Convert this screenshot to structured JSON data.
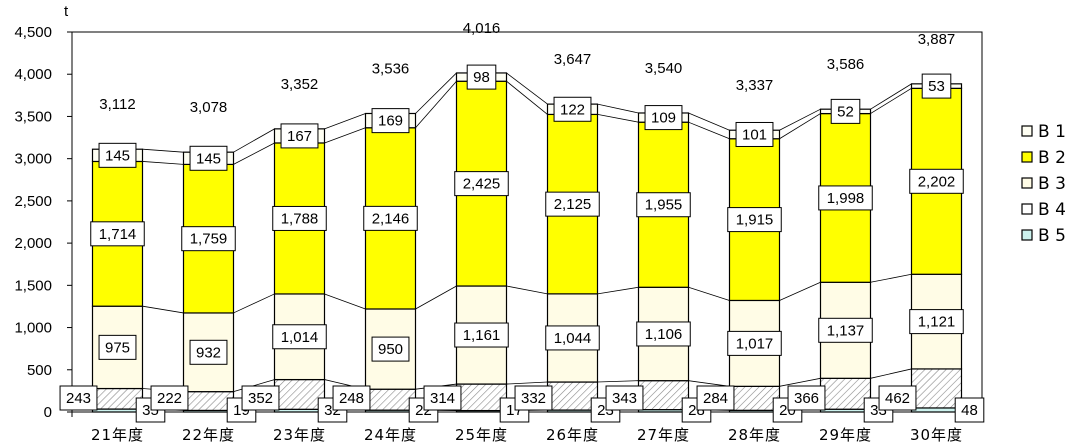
{
  "colors": {
    "B 1": "#fffff3",
    "B 2": "#ffff00",
    "B 3": "#fffce6",
    "B 4": "#ffffff",
    "B 5": "#ccf2ee"
  },
  "chart_data": {
    "type": "bar",
    "stacked": true,
    "unit_label": "t",
    "categories": [
      "21年度",
      "22年度",
      "23年度",
      "24年度",
      "25年度",
      "26年度",
      "27年度",
      "28年度",
      "29年度",
      "30年度"
    ],
    "ylim": [
      0,
      4500
    ],
    "yticks": [
      0,
      500,
      1000,
      1500,
      2000,
      2500,
      3000,
      3500,
      4000,
      4500
    ],
    "ytick_labels": [
      "0",
      "500",
      "1,000",
      "1,500",
      "2,000",
      "2,500",
      "3,000",
      "3,500",
      "4,000",
      "4,500"
    ],
    "grid": false,
    "legend_position": "right",
    "series": [
      {
        "name": "B 5",
        "values": [
          35,
          19,
          32,
          22,
          17,
          23,
          28,
          20,
          33,
          48
        ],
        "labels": [
          "35",
          "19",
          "32",
          "22",
          "17",
          "23",
          "28",
          "20",
          "33",
          "48"
        ]
      },
      {
        "name": "B 4",
        "values": [
          243,
          222,
          352,
          248,
          314,
          332,
          343,
          284,
          366,
          462
        ],
        "labels": [
          "243",
          "222",
          "352",
          "248",
          "314",
          "332",
          "343",
          "284",
          "366",
          "462"
        ]
      },
      {
        "name": "B 3",
        "values": [
          975,
          932,
          1014,
          950,
          1161,
          1044,
          1106,
          1017,
          1137,
          1121
        ],
        "labels": [
          "975",
          "932",
          "1,014",
          "950",
          "1,161",
          "1,044",
          "1,106",
          "1,017",
          "1,137",
          "1,121"
        ]
      },
      {
        "name": "B 2",
        "values": [
          1714,
          1759,
          1788,
          2146,
          2425,
          2125,
          1955,
          1915,
          1998,
          2202
        ],
        "labels": [
          "1,714",
          "1,759",
          "1,788",
          "2,146",
          "2,425",
          "2,125",
          "1,955",
          "1,915",
          "1,998",
          "2,202"
        ]
      },
      {
        "name": "B 1",
        "values": [
          145,
          145,
          167,
          169,
          98,
          122,
          109,
          101,
          52,
          53
        ],
        "labels": [
          "145",
          "145",
          "167",
          "169",
          "98",
          "122",
          "109",
          "101",
          "52",
          "53"
        ]
      }
    ],
    "totals": [
      3112,
      3078,
      3352,
      3536,
      4016,
      3647,
      3540,
      3337,
      3586,
      3887
    ],
    "total_labels": [
      "3,112",
      "3,078",
      "3,352",
      "3,536",
      "4,016",
      "3,647",
      "3,540",
      "3,337",
      "3,586",
      "3,887"
    ],
    "legend": [
      "B 1",
      "B 2",
      "B 3",
      "B 4",
      "B 5"
    ]
  }
}
